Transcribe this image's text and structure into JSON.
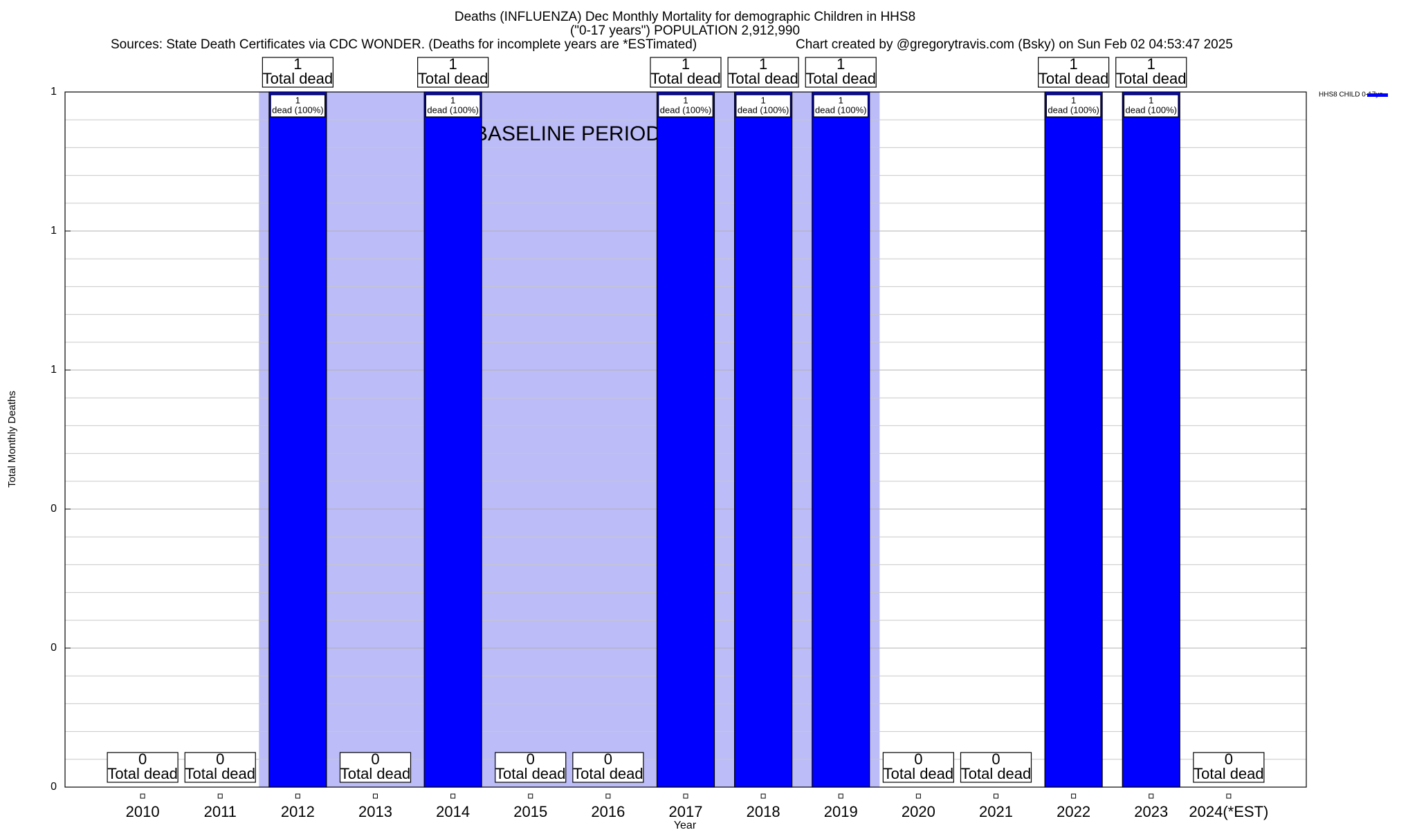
{
  "chart_data": {
    "type": "bar",
    "title": "Deaths (INFLUENZA) Dec Monthly Mortality for demographic Children in HHS8",
    "subtitle": "(\"0-17 years\") POPULATION 2,912,990",
    "sources": "Sources: State Death Certificates via CDC WONDER. (Deaths for incomplete years are *ESTimated)",
    "credit": "Chart created by @gregorytravis.com (Bsky) on Sun Feb 02 04:53:47 2025",
    "x_label": "Year",
    "y_label": "Total Monthly Deaths",
    "categories": [
      "2010",
      "2011",
      "2012",
      "2013",
      "2014",
      "2015",
      "2016",
      "2017",
      "2018",
      "2019",
      "2020",
      "2021",
      "2022",
      "2023",
      "2024(*EST)"
    ],
    "series": [
      {
        "name": "HHS8 CHILD 0-17yo",
        "color": "#0000ff",
        "values": [
          0,
          0,
          1,
          0,
          1,
          0,
          0,
          1,
          1,
          1,
          0,
          0,
          1,
          1,
          0
        ]
      }
    ],
    "total_label": "Total dead",
    "inner_label": "dead (100%)",
    "baseline": {
      "label": "BASELINE PERIOD",
      "start": "2012",
      "end": "2019",
      "color": "#bcbcf8"
    },
    "ylim": [
      0,
      1
    ],
    "yticks": [
      0,
      {
        "value": 0.2,
        "label": "0"
      },
      {
        "value": 0.4,
        "label": "0"
      },
      {
        "value": 0.6,
        "label": "1"
      },
      {
        "value": 0.8,
        "label": "1"
      },
      1
    ],
    "grid": true,
    "legend": "top-right"
  }
}
